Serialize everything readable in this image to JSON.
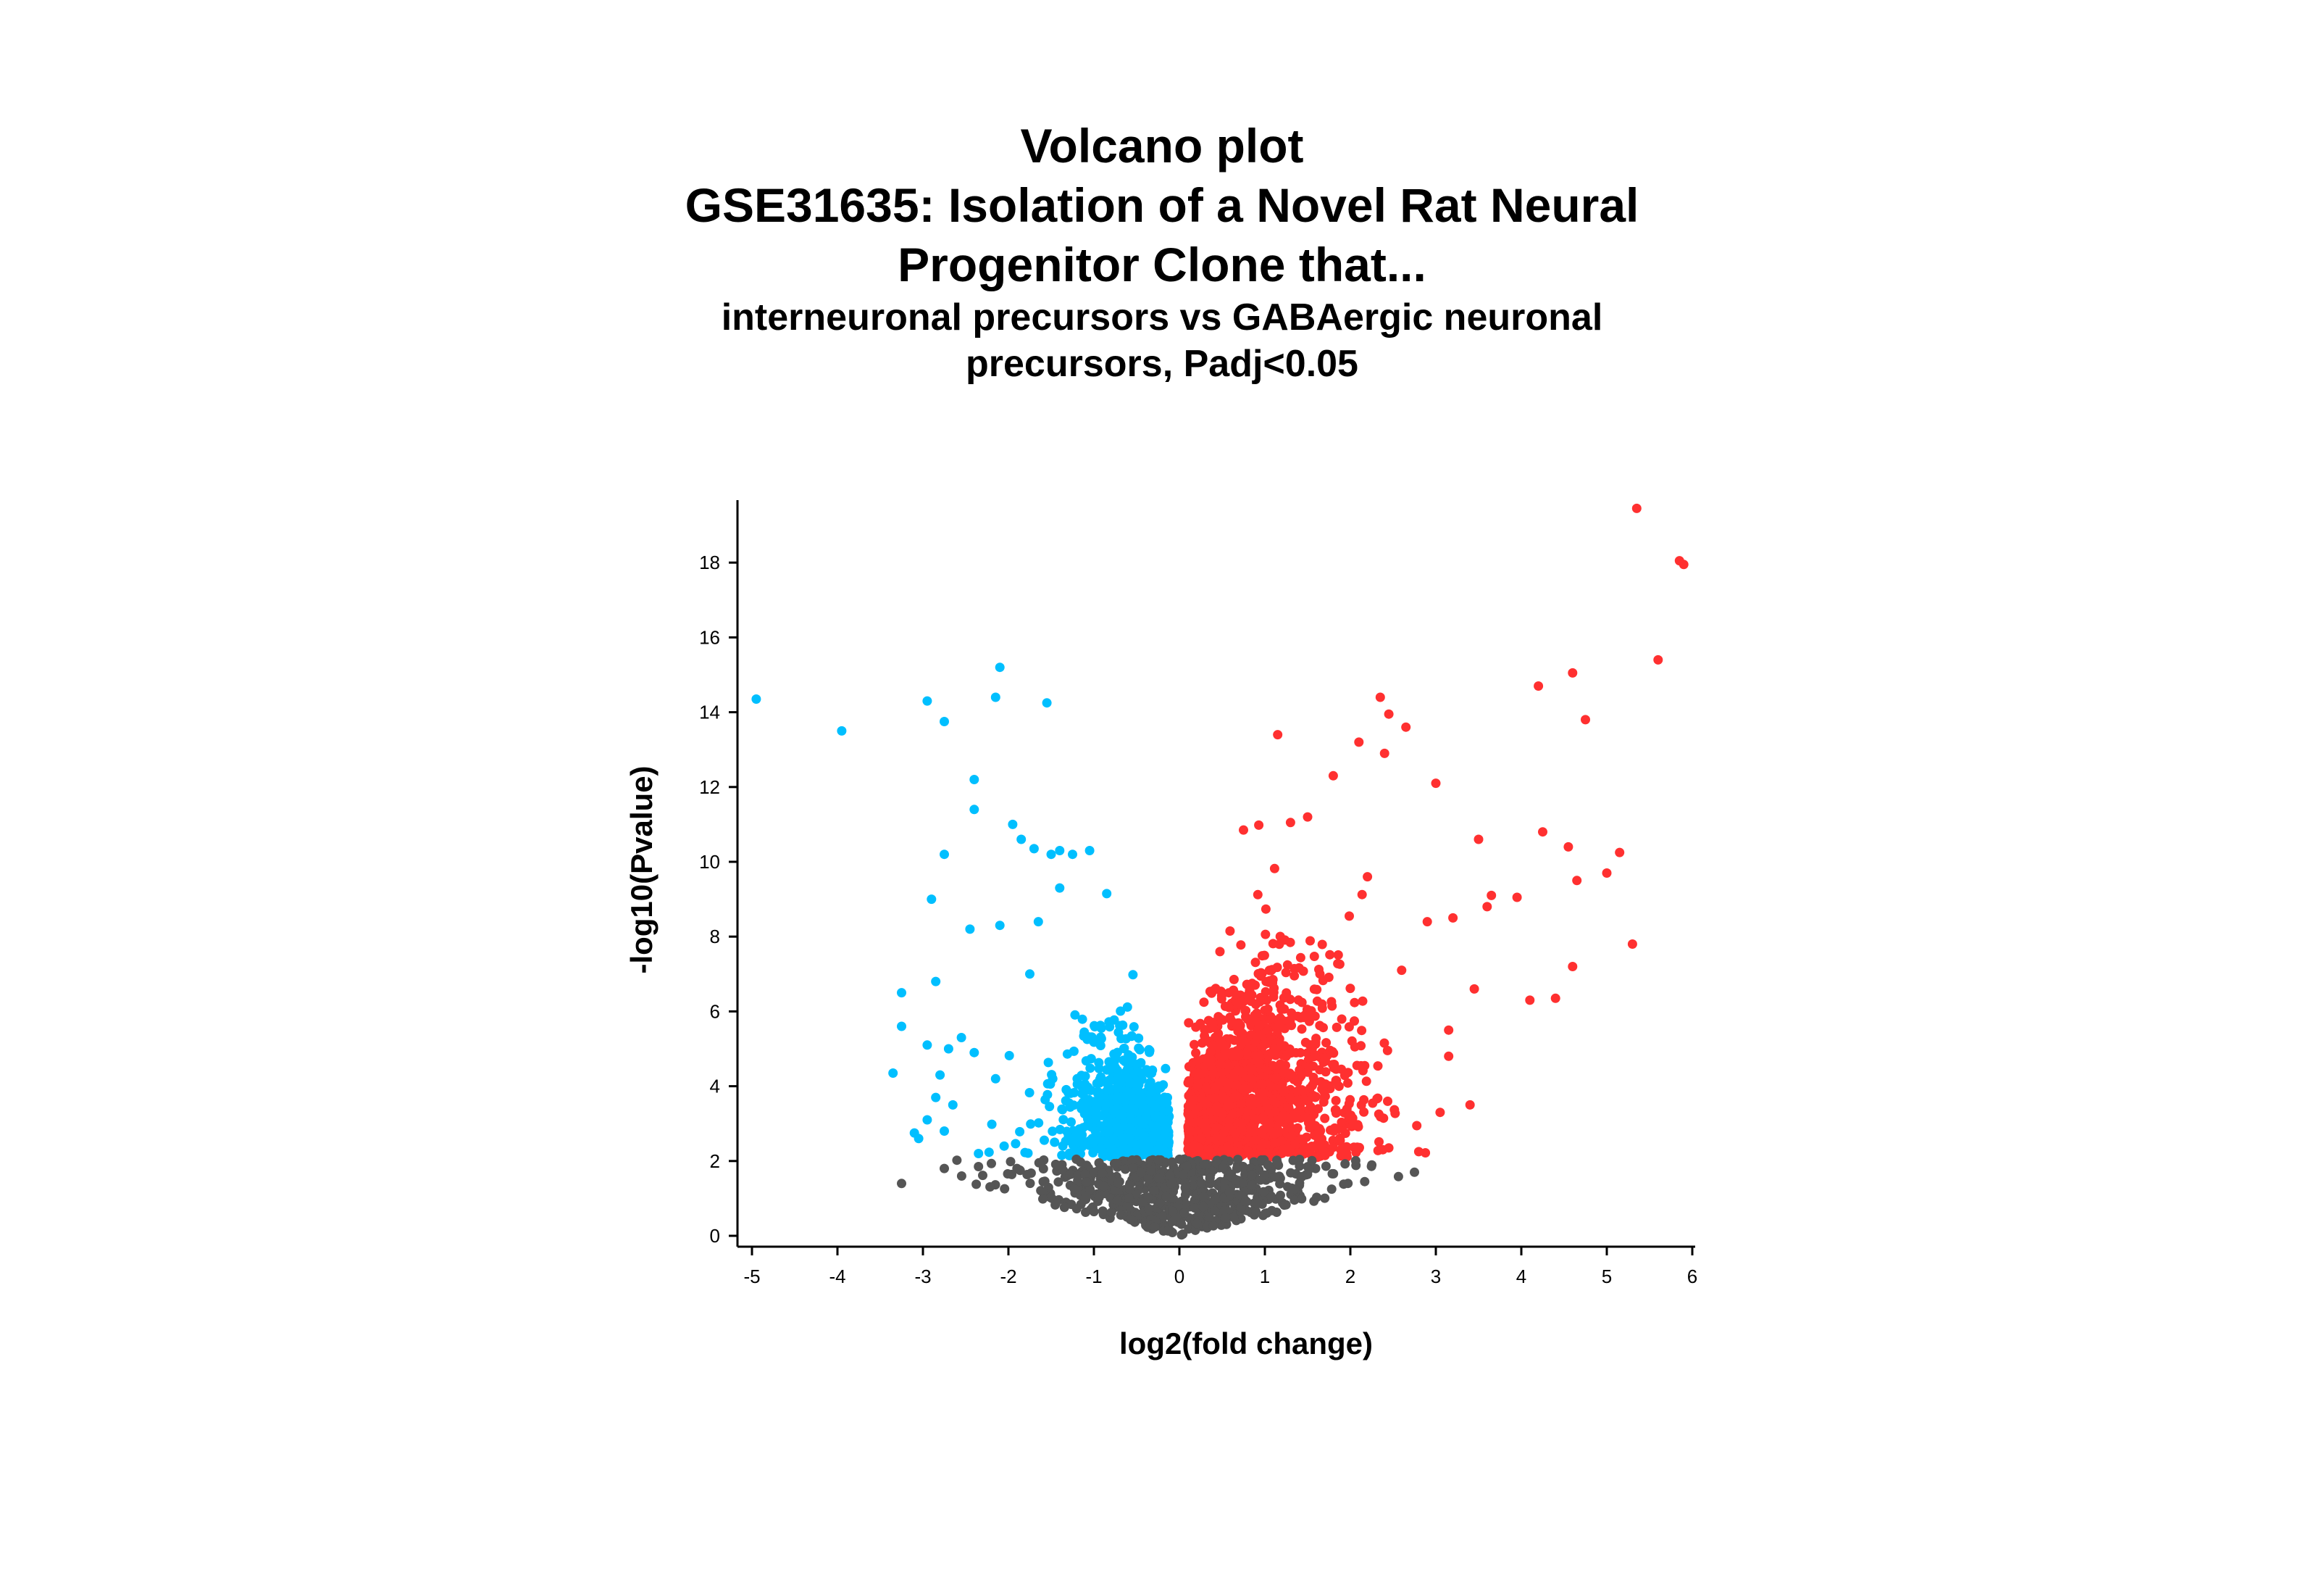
{
  "title": {
    "line1": "Volcano plot",
    "line2": "GSE31635: Isolation of a Novel Rat Neural",
    "line3": "Progenitor Clone that...",
    "sub1": "interneuronal precursors vs GABAergic neuronal",
    "sub2": "precursors, Padj<0.05"
  },
  "chart_data": {
    "type": "scatter",
    "xlabel": "log2(fold change)",
    "ylabel": "-log10(Pvalue)",
    "xlim": [
      -5.1,
      6.1
    ],
    "ylim": [
      -0.3,
      19.7
    ],
    "x_ticks": [
      -5,
      -4,
      -3,
      -2,
      -1,
      0,
      1,
      2,
      3,
      4,
      5,
      6
    ],
    "y_ticks": [
      0,
      2,
      4,
      6,
      8,
      10,
      12,
      14,
      16,
      18
    ],
    "colors": {
      "down": "#00BFFF",
      "up": "#FF3030",
      "ns": "#555555"
    },
    "significance_threshold": 2.1,
    "series": [
      {
        "group": "down",
        "highlighted_points": [
          [
            -4.95,
            14.35
          ],
          [
            -3.95,
            13.5
          ],
          [
            -2.95,
            14.3
          ],
          [
            -2.75,
            13.75
          ],
          [
            -2.15,
            14.4
          ],
          [
            -2.1,
            15.2
          ],
          [
            -1.55,
            14.25
          ],
          [
            -2.4,
            12.2
          ],
          [
            -2.4,
            11.4
          ],
          [
            -2.75,
            10.2
          ],
          [
            -2.9,
            9.0
          ],
          [
            -1.95,
            11.0
          ],
          [
            -1.85,
            10.6
          ],
          [
            -1.7,
            10.35
          ],
          [
            -1.5,
            10.2
          ],
          [
            -1.4,
            10.3
          ],
          [
            -1.25,
            10.2
          ],
          [
            -1.05,
            10.3
          ],
          [
            -1.4,
            9.3
          ],
          [
            -0.85,
            9.15
          ],
          [
            -2.1,
            8.3
          ],
          [
            -2.45,
            8.2
          ],
          [
            -1.65,
            8.4
          ],
          [
            -2.85,
            6.8
          ],
          [
            -3.25,
            6.5
          ],
          [
            -3.25,
            5.6
          ],
          [
            -2.95,
            5.1
          ],
          [
            -2.7,
            5.0
          ],
          [
            -2.55,
            5.3
          ],
          [
            -2.4,
            4.9
          ],
          [
            -2.15,
            4.2
          ],
          [
            -2.8,
            4.3
          ],
          [
            -3.35,
            4.35
          ],
          [
            -2.65,
            3.5
          ],
          [
            -2.85,
            3.7
          ],
          [
            -2.95,
            3.1
          ],
          [
            -3.05,
            2.6
          ],
          [
            -2.75,
            2.8
          ],
          [
            -2.35,
            2.2
          ],
          [
            -2.05,
            2.4
          ],
          [
            -3.1,
            2.75
          ],
          [
            -1.75,
            7.0
          ]
        ]
      },
      {
        "group": "up",
        "highlighted_points": [
          [
            5.35,
            19.45
          ],
          [
            5.85,
            18.05
          ],
          [
            5.9,
            17.95
          ],
          [
            5.6,
            15.4
          ],
          [
            4.6,
            15.05
          ],
          [
            4.2,
            14.7
          ],
          [
            4.75,
            13.8
          ],
          [
            2.35,
            14.4
          ],
          [
            2.45,
            13.95
          ],
          [
            2.65,
            13.6
          ],
          [
            1.15,
            13.4
          ],
          [
            2.1,
            13.2
          ],
          [
            2.4,
            12.9
          ],
          [
            3.0,
            12.1
          ],
          [
            1.8,
            12.3
          ],
          [
            1.5,
            11.2
          ],
          [
            1.3,
            11.05
          ],
          [
            0.75,
            10.85
          ],
          [
            4.25,
            10.8
          ],
          [
            4.55,
            10.4
          ],
          [
            5.15,
            10.25
          ],
          [
            5.0,
            9.7
          ],
          [
            4.65,
            9.5
          ],
          [
            3.95,
            9.05
          ],
          [
            3.5,
            10.6
          ],
          [
            3.65,
            9.1
          ],
          [
            5.3,
            7.8
          ],
          [
            4.6,
            7.2
          ],
          [
            4.1,
            6.3
          ],
          [
            4.4,
            6.35
          ],
          [
            3.45,
            6.6
          ],
          [
            3.15,
            5.5
          ],
          [
            3.4,
            3.5
          ],
          [
            2.8,
            2.25
          ],
          [
            2.45,
            2.35
          ],
          [
            3.05,
            3.3
          ],
          [
            3.15,
            4.8
          ],
          [
            2.6,
            7.1
          ],
          [
            2.9,
            8.4
          ],
          [
            3.2,
            8.5
          ],
          [
            3.6,
            8.8
          ],
          [
            2.2,
            9.6
          ]
        ]
      },
      {
        "group": "ns",
        "highlighted_points": [
          [
            -3.25,
            1.4
          ],
          [
            -2.75,
            1.8
          ],
          [
            -2.35,
            1.85
          ],
          [
            2.75,
            1.7
          ]
        ]
      }
    ]
  }
}
